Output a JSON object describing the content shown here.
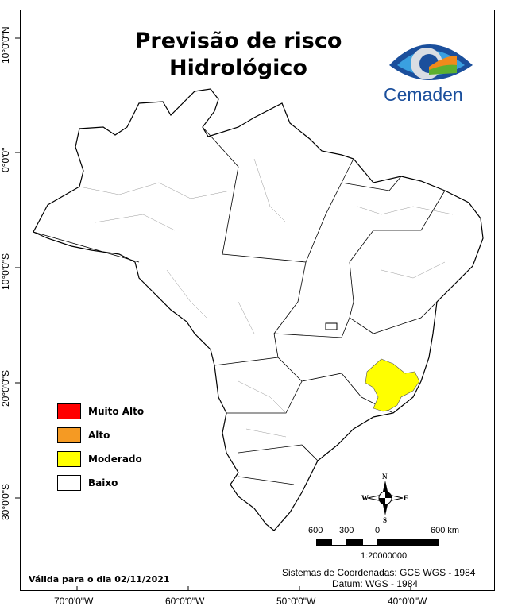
{
  "title": {
    "line1": "Previsão de risco",
    "line2": "Hidrológico"
  },
  "logo": {
    "text": "Cemaden",
    "colors": {
      "blue": "#1b4f9c",
      "light_blue": "#3aa0e0",
      "green": "#5cb030",
      "orange": "#f08a1c"
    }
  },
  "grid": {
    "latitudes": [
      "10°0'0\"N",
      "0°0'0\"",
      "10°0'0\"S",
      "20°0'0\"S",
      "30°0'0\"S"
    ],
    "longitudes": [
      "70°0'0\"W",
      "60°0'0\"W",
      "50°0'0\"W",
      "40°0'0\"W"
    ]
  },
  "legend": [
    {
      "label": "Muito Alto",
      "color": "#ff0000"
    },
    {
      "label": "Alto",
      "color": "#f59a23"
    },
    {
      "label": "Moderado",
      "color": "#ffff00"
    },
    {
      "label": "Baixo",
      "color": "#ffffff"
    }
  ],
  "compass": {
    "n": "N",
    "s": "S",
    "e": "E",
    "w": "W"
  },
  "scale_bar": {
    "labels": [
      "600",
      "300",
      "0",
      "600 km"
    ],
    "ratio": "1:20000000"
  },
  "footer": {
    "valid_date": "Válida para o dia 02/11/2021",
    "coord_system": "Sistemas de Coordenadas: GCS WGS - 1984",
    "datum": "Datum: WGS - 1984"
  }
}
